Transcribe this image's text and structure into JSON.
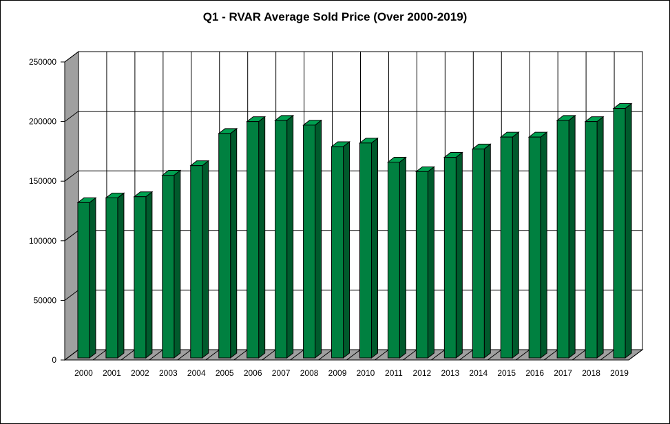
{
  "chart_data": {
    "type": "bar",
    "title": "Q1 - RVAR Average Sold Price (Over 2000-2019)",
    "xlabel": "",
    "ylabel": "",
    "categories": [
      "2000",
      "2001",
      "2002",
      "2003",
      "2004",
      "2005",
      "2006",
      "2007",
      "2008",
      "2009",
      "2010",
      "2011",
      "2012",
      "2013",
      "2014",
      "2015",
      "2016",
      "2017",
      "2018",
      "2019"
    ],
    "values": [
      132000,
      136000,
      137000,
      155000,
      163000,
      190000,
      200000,
      201000,
      197000,
      179000,
      182000,
      166000,
      158000,
      170000,
      177000,
      187000,
      187000,
      201000,
      200000,
      211000
    ],
    "ylim": [
      0,
      250000
    ],
    "yticks": [
      0,
      50000,
      100000,
      150000,
      200000,
      250000
    ],
    "grid": true,
    "legend": "none",
    "colors": {
      "bar_front": "#008040",
      "bar_side": "#005a2c",
      "bar_top": "#00a050",
      "back_wall": "#ffffff",
      "side_wall": "#a0a0a0",
      "floor": "#a0a0a0"
    }
  }
}
